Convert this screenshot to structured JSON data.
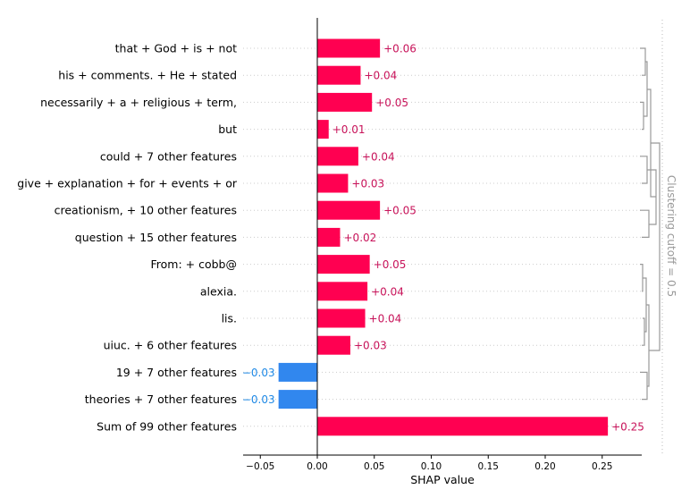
{
  "chart_data": {
    "type": "bar",
    "orientation": "horizontal",
    "categories": [
      "that + God + is + not",
      "his + comments. + He + stated",
      "necessarily + a + religious + term,",
      "but",
      "could + 7 other features",
      "give + explanation + for + events + or",
      "creationism, + 10 other features",
      "question + 15 other features",
      "From: + cobb@",
      "alexia.",
      "lis.",
      "uiuc. + 6 other features",
      "19 + 7 other features",
      "theories + 7 other features",
      "Sum of 99 other features"
    ],
    "values": [
      0.055,
      0.038,
      0.048,
      0.01,
      0.036,
      0.027,
      0.055,
      0.02,
      0.046,
      0.044,
      0.042,
      0.029,
      -0.034,
      -0.034,
      0.255
    ],
    "value_labels": [
      "+0.06",
      "+0.04",
      "+0.05",
      "+0.01",
      "+0.04",
      "+0.03",
      "+0.05",
      "+0.02",
      "+0.05",
      "+0.04",
      "+0.04",
      "+0.03",
      "−0.03",
      "−0.03",
      "+0.25"
    ],
    "xlabel": "SHAP value",
    "xlim": [
      -0.065,
      0.286
    ],
    "xticks": [
      -0.05,
      0.0,
      0.05,
      0.1,
      0.15,
      0.2,
      0.25
    ],
    "xtick_labels": [
      "−0.05",
      "0.00",
      "0.05",
      "0.10",
      "0.15",
      "0.20",
      "0.25"
    ],
    "cutoff_label": "Clustering cutoff = 0.5",
    "grid": "dotted horizontal row guides",
    "colors": {
      "positive": "#ff0051",
      "positive_label": "#c8135a",
      "negative": "#3187ee",
      "negative_label": "#1e88e5",
      "dendrogram": "#999999"
    }
  }
}
